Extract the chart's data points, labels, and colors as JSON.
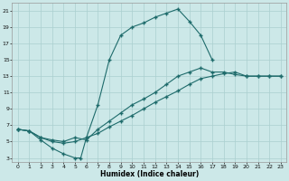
{
  "xlabel": "Humidex (Indice chaleur)",
  "xlim": [
    -0.5,
    23.5
  ],
  "ylim": [
    2.5,
    22
  ],
  "xticks": [
    0,
    1,
    2,
    3,
    4,
    5,
    6,
    7,
    8,
    9,
    10,
    11,
    12,
    13,
    14,
    15,
    16,
    17,
    18,
    19,
    20,
    21,
    22,
    23
  ],
  "yticks": [
    3,
    5,
    7,
    9,
    11,
    13,
    15,
    17,
    19,
    21
  ],
  "bg_color": "#cce8e8",
  "line_color": "#1e6b6b",
  "grid_color": "#aacfcf",
  "line1_x": [
    0,
    1,
    2,
    3,
    4,
    5,
    5.5,
    6,
    7,
    8,
    9,
    10,
    11,
    12,
    13,
    14,
    15,
    16,
    17
  ],
  "line1_y": [
    6.5,
    6.3,
    5.2,
    4.2,
    3.5,
    3.0,
    3.0,
    5.5,
    9.5,
    15.0,
    18.0,
    19.0,
    19.5,
    20.2,
    20.7,
    21.2,
    19.7,
    18.0,
    15.0
  ],
  "line2_x": [
    0,
    1,
    2,
    3,
    4,
    5,
    6,
    7,
    8,
    9,
    10,
    11,
    12,
    13,
    14,
    15,
    16,
    17,
    18,
    19,
    20,
    21,
    22,
    23
  ],
  "line2_y": [
    6.5,
    6.3,
    5.5,
    5.2,
    5.0,
    5.5,
    5.2,
    6.5,
    7.5,
    8.5,
    9.5,
    10.2,
    11.0,
    12.0,
    13.0,
    13.5,
    14.0,
    13.5,
    13.5,
    13.2,
    13.0,
    13.0,
    13.0,
    13.0
  ],
  "line3_x": [
    0,
    1,
    2,
    3,
    4,
    5,
    6,
    7,
    8,
    9,
    10,
    11,
    12,
    13,
    14,
    15,
    16,
    17,
    18,
    19,
    20,
    21,
    22,
    23
  ],
  "line3_y": [
    6.5,
    6.3,
    5.5,
    5.0,
    4.8,
    5.0,
    5.5,
    6.0,
    6.8,
    7.5,
    8.2,
    9.0,
    9.8,
    10.5,
    11.2,
    12.0,
    12.7,
    13.0,
    13.3,
    13.5,
    13.0,
    13.0,
    13.0,
    13.0
  ]
}
